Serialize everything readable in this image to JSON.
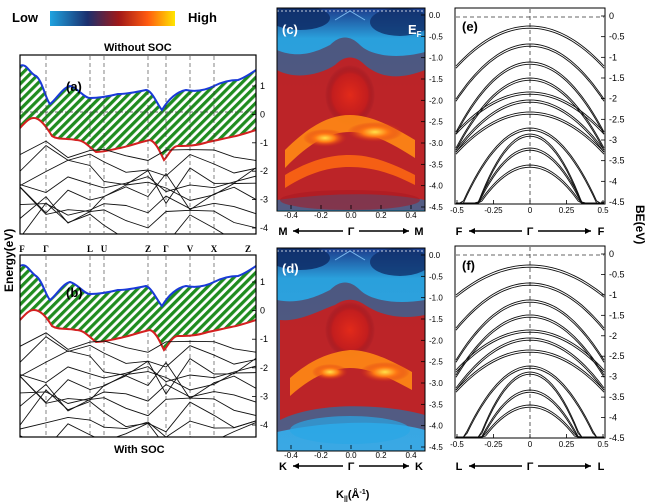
{
  "colorbar": {
    "low": "Low",
    "high": "High",
    "colors": [
      "#1fa3e0",
      "#1b2f6e",
      "#a01818",
      "#ff5a10",
      "#ffe600"
    ]
  },
  "titles": {
    "top": "Without SOC",
    "bottom": "With SOC"
  },
  "panel_labels": {
    "a": "(a)",
    "b": "(b)",
    "c": "(c)",
    "d": "(d)",
    "e": "(e)",
    "f": "(f)"
  },
  "ef_label": "E",
  "ef_sub": "F",
  "axis": {
    "energy_label": "Energy(eV)",
    "be_label": "BE(eV)",
    "k_label": "K",
    "k_sub": "||",
    "k_unit": "(Å",
    "k_exp": "-1",
    "k_close": ")"
  },
  "chart_data": [
    {
      "type": "line",
      "panel": "a",
      "title": "Without SOC",
      "ylabel": "Energy(eV)",
      "ylim": [
        -4.4,
        1.8
      ],
      "yticks": [
        "1",
        "0",
        "-1",
        "-2",
        "-3",
        "-4"
      ],
      "kpath": [
        "F",
        "Γ",
        "L",
        "U",
        "Z",
        "Γ",
        "V",
        "X",
        "Z"
      ],
      "vbm_color": "#d42020",
      "cbm_color": "#1a3ad8",
      "gap_fill": "#1f8c1f"
    },
    {
      "type": "line",
      "panel": "b",
      "title": "With SOC",
      "ylim": [
        -4.6,
        1.8
      ],
      "yticks": [
        "1",
        "0",
        "-1",
        "-2",
        "-3",
        "-4"
      ],
      "kpath": [
        "F",
        "Γ",
        "L",
        "U",
        "Z",
        "Γ",
        "V",
        "X",
        "Z"
      ]
    },
    {
      "type": "heatmap",
      "panel": "c",
      "xlim": [
        -0.45,
        0.45
      ],
      "xticks": [
        "-0.4",
        "-0.2",
        "0.0",
        "0.2",
        "0.4"
      ],
      "ylim": [
        -4.5,
        0.1
      ],
      "yticks": [
        "0.0",
        "-0.5",
        "-1.0",
        "-1.5",
        "-2.0",
        "-2.5",
        "-3.0",
        "-3.5",
        "-4.0",
        "-4.5"
      ],
      "path": [
        "M",
        "Γ",
        "M"
      ]
    },
    {
      "type": "heatmap",
      "panel": "d",
      "xlim": [
        -0.45,
        0.45
      ],
      "xticks": [
        "-0.4",
        "-0.2",
        "0.0",
        "0.2",
        "0.4"
      ],
      "ylim": [
        -4.5,
        0.1
      ],
      "yticks": [
        "0.0",
        "-0.5",
        "-1.0",
        "-1.5",
        "-2.0",
        "-2.5",
        "-3.0",
        "-3.5",
        "-4.0",
        "-4.5"
      ],
      "path": [
        "K",
        "Γ",
        "K"
      ]
    },
    {
      "type": "line",
      "panel": "e",
      "xlim": [
        -0.5,
        0.5
      ],
      "xticks": [
        "-0.5",
        "-0.25",
        "0",
        "0.25",
        "0.5"
      ],
      "ylim": [
        -4.5,
        0.1
      ],
      "yticks": [
        "0",
        "-0.5",
        "-1",
        "-1.5",
        "-2",
        "-2.5",
        "-3",
        "-3.5",
        "-4",
        "-4.5"
      ],
      "path": [
        "F",
        "Γ",
        "F"
      ]
    },
    {
      "type": "line",
      "panel": "f",
      "xlim": [
        -0.5,
        0.5
      ],
      "xticks": [
        "-0.5",
        "-0.25",
        "0",
        "0.25",
        "0.5"
      ],
      "ylim": [
        -4.5,
        0.1
      ],
      "yticks": [
        "0",
        "-0.5",
        "-1",
        "-1.5",
        "-2",
        "-2.5",
        "-3",
        "-3.5",
        "-4",
        "-4.5"
      ],
      "path": [
        "L",
        "Γ",
        "L"
      ]
    }
  ]
}
